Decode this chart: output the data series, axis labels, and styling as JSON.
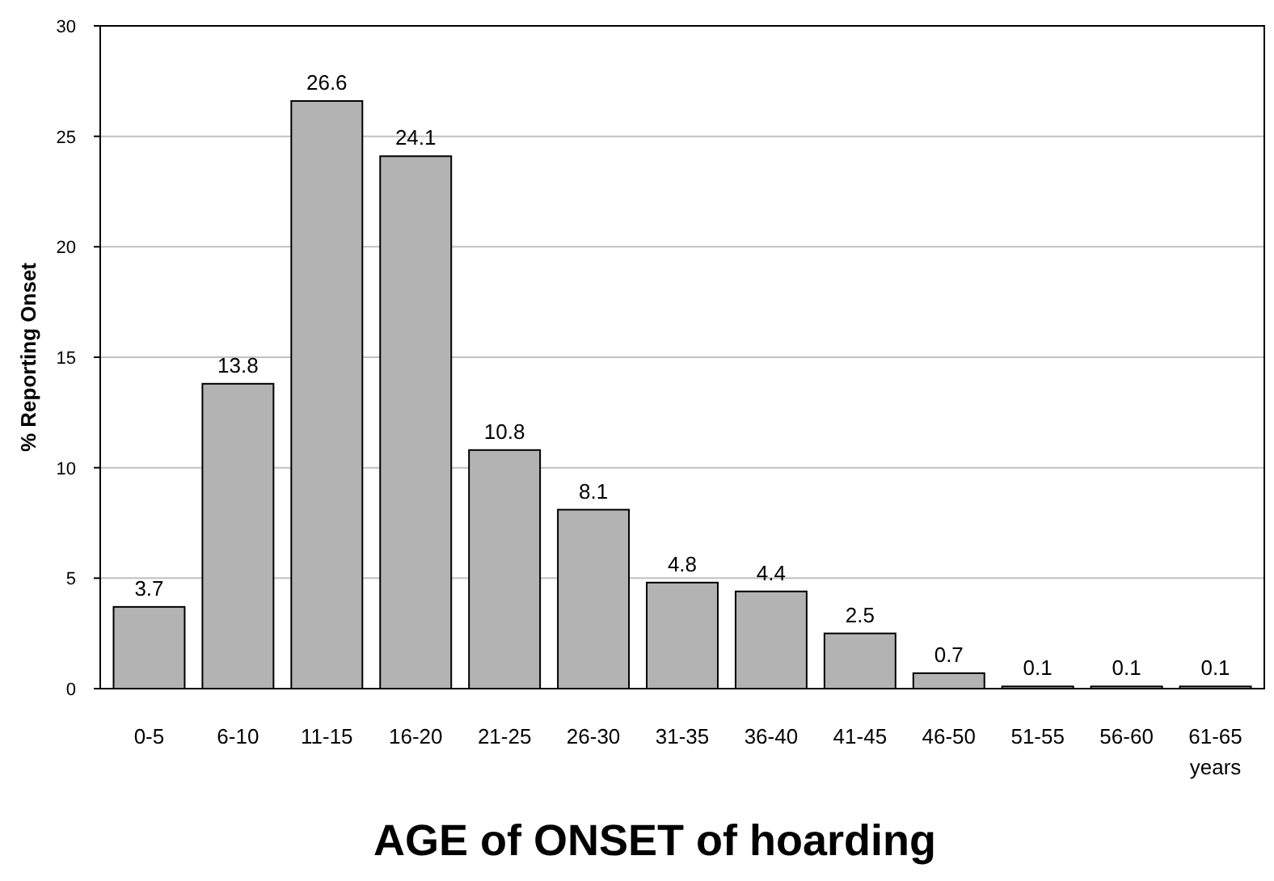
{
  "chart_data": {
    "type": "bar",
    "title": "AGE of ONSET of hoarding",
    "ylabel": "% Reporting Onset",
    "categories": [
      "0-5",
      "6-10",
      "11-15",
      "16-20",
      "21-25",
      "26-30",
      "31-35",
      "36-40",
      "41-45",
      "46-50",
      "51-55",
      "56-60",
      "61-65 years"
    ],
    "values": [
      3.7,
      13.8,
      26.6,
      24.1,
      10.8,
      8.1,
      4.8,
      4.4,
      2.5,
      0.7,
      0.1,
      0.1,
      0.1
    ],
    "color": "#b3b3b3",
    "ylim": [
      0,
      30
    ],
    "yticks": [
      0,
      5,
      10,
      15,
      20,
      25,
      30
    ],
    "grid": "y",
    "data_labels": true
  }
}
